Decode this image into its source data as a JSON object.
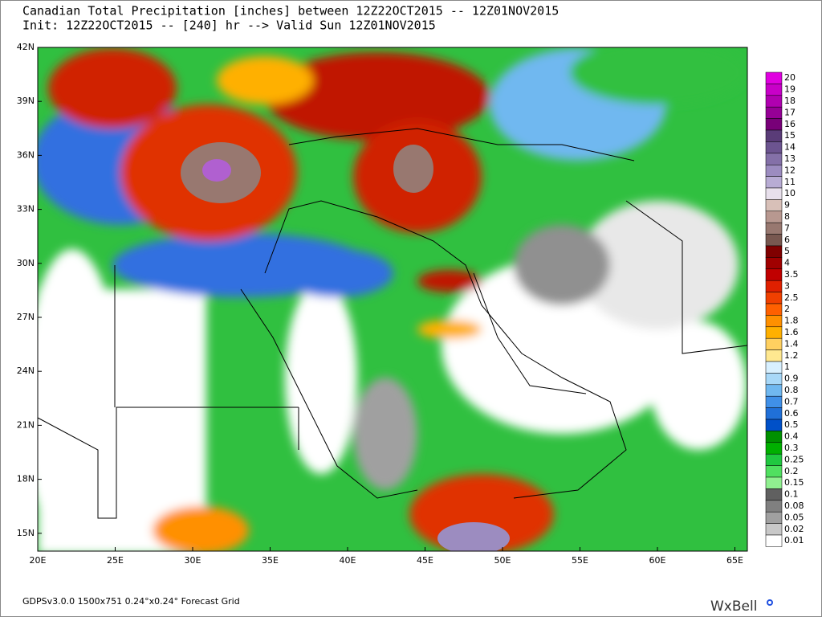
{
  "header": {
    "title": "Canadian Total Precipitation [inches] between 12Z22OCT2015 -- 12Z01NOV2015",
    "subtitle": "Init: 12Z22OCT2015 -- [240] hr --> Valid Sun 12Z01NOV2015"
  },
  "map": {
    "lat_labels": [
      "42N",
      "39N",
      "36N",
      "33N",
      "30N",
      "27N",
      "24N",
      "21N",
      "18N",
      "15N"
    ],
    "lon_labels": [
      "20E",
      "25E",
      "30E",
      "35E",
      "40E",
      "45E",
      "50E",
      "55E",
      "60E",
      "65E"
    ]
  },
  "colorbar": [
    {
      "label": "20",
      "color": "#e000e0"
    },
    {
      "label": "19",
      "color": "#c800c8"
    },
    {
      "label": "18",
      "color": "#b000b0"
    },
    {
      "label": "17",
      "color": "#960096"
    },
    {
      "label": "16",
      "color": "#780078"
    },
    {
      "label": "15",
      "color": "#5a3c78"
    },
    {
      "label": "14",
      "color": "#6c5490"
    },
    {
      "label": "13",
      "color": "#8470a8"
    },
    {
      "label": "12",
      "color": "#9c8cc0"
    },
    {
      "label": "11",
      "color": "#b8acd4"
    },
    {
      "label": "10",
      "color": "#e8e0ec"
    },
    {
      "label": "9",
      "color": "#d8c0b8"
    },
    {
      "label": "8",
      "color": "#b89890"
    },
    {
      "label": "7",
      "color": "#987870"
    },
    {
      "label": "6",
      "color": "#785850"
    },
    {
      "label": "5",
      "color": "#800000"
    },
    {
      "label": "4",
      "color": "#a00000"
    },
    {
      "label": "3.5",
      "color": "#c00000"
    },
    {
      "label": "3",
      "color": "#e02000"
    },
    {
      "label": "2.5",
      "color": "#f04000"
    },
    {
      "label": "2",
      "color": "#ff6000"
    },
    {
      "label": "1.8",
      "color": "#ff9000"
    },
    {
      "label": "1.6",
      "color": "#ffb000"
    },
    {
      "label": "1.4",
      "color": "#ffd060"
    },
    {
      "label": "1.2",
      "color": "#ffe890"
    },
    {
      "label": "1",
      "color": "#d8f0ff"
    },
    {
      "label": "0.9",
      "color": "#a8d8f8"
    },
    {
      "label": "0.8",
      "color": "#70b8f0"
    },
    {
      "label": "0.7",
      "color": "#4090e8"
    },
    {
      "label": "0.6",
      "color": "#2070d8"
    },
    {
      "label": "0.5",
      "color": "#0050c8"
    },
    {
      "label": "0.4",
      "color": "#009000"
    },
    {
      "label": "0.3",
      "color": "#00b000"
    },
    {
      "label": "0.25",
      "color": "#20c840"
    },
    {
      "label": "0.2",
      "color": "#50e060"
    },
    {
      "label": "0.15",
      "color": "#90f090"
    },
    {
      "label": "0.1",
      "color": "#606060"
    },
    {
      "label": "0.08",
      "color": "#808080"
    },
    {
      "label": "0.05",
      "color": "#a0a0a0"
    },
    {
      "label": "0.02",
      "color": "#c8c8c8"
    },
    {
      "label": "0.01",
      "color": "#ffffff"
    }
  ],
  "footer": {
    "grid_info": "GDPSv3.0.0  1500x751  0.24°x0.24° Forecast Grid",
    "logo": "WxBell"
  }
}
